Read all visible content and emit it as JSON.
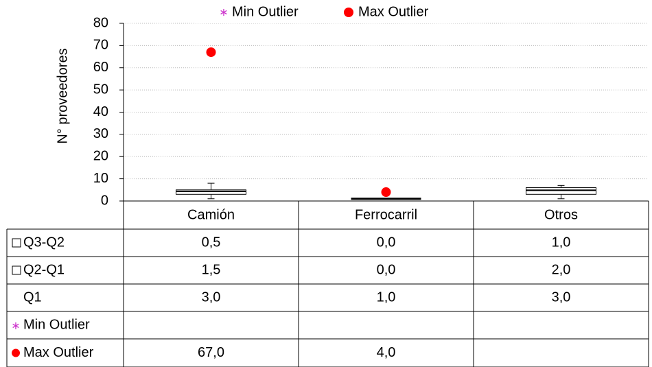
{
  "chart_data": {
    "type": "box",
    "y_label": "N° proveedores",
    "categories": [
      "Camión",
      "Ferrocarril",
      "Otros"
    ],
    "series": [
      {
        "name": "Q3-Q2",
        "color": "#ffffff",
        "values": [
          0.5,
          0,
          1
        ],
        "value_labels": [
          "0,5",
          "0,0",
          "1,0"
        ]
      },
      {
        "name": "Q2-Q1",
        "color": "#ffffff",
        "values": [
          1.5,
          0,
          2
        ],
        "value_labels": [
          "1,5",
          "0,0",
          "2,0"
        ]
      },
      {
        "name": "Q1",
        "values": [
          3,
          1,
          3
        ],
        "value_labels": [
          "3,0",
          "1,0",
          "3,0"
        ]
      },
      {
        "name": "Min Outlier",
        "color": "#cc33cc",
        "values": [
          null,
          null,
          null
        ]
      },
      {
        "name": "Max Outlier",
        "color": "#ff0000",
        "values": [
          67,
          4,
          null
        ],
        "value_labels": [
          "67,0",
          "4,0",
          null
        ]
      }
    ],
    "whiskers": {
      "low": [
        1,
        1,
        1
      ],
      "high": [
        8,
        1,
        7
      ]
    },
    "ylim": [
      0,
      80
    ],
    "yticks": [
      0,
      10,
      20,
      30,
      40,
      50,
      60,
      70,
      80
    ],
    "grid": true
  }
}
